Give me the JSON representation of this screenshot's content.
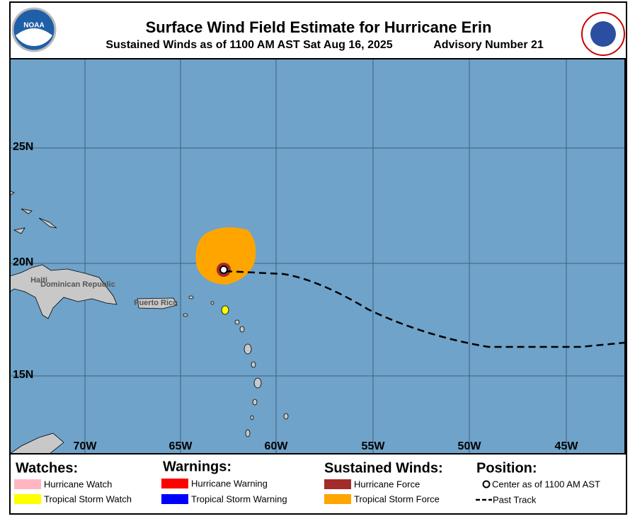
{
  "header": {
    "title": "Surface Wind Field Estimate for Hurricane Erin",
    "subtitle": "Sustained Winds as of 1100 AM AST Sat Aug 16, 2025",
    "advisory": "Advisory Number 21"
  },
  "map": {
    "latitude_labels": [
      "25N",
      "20N",
      "15N"
    ],
    "longitude_labels": [
      "70W",
      "65W",
      "60W",
      "55W",
      "50W",
      "45W"
    ],
    "places": [
      "Haiti",
      "Dominican Republic",
      "Puerto Rico"
    ]
  },
  "legend": {
    "watches": {
      "title": "Watches:",
      "items": [
        "Hurricane Watch",
        "Tropical Storm Watch"
      ]
    },
    "warnings": {
      "title": "Warnings:",
      "items": [
        "Hurricane Warning",
        "Tropical Storm Warning"
      ]
    },
    "winds": {
      "title": "Sustained Winds:",
      "items": [
        "Hurricane Force",
        "Tropical Storm Force"
      ]
    },
    "position": {
      "title": "Position:",
      "items": [
        "Center as of 1100 AM AST",
        "Past Track"
      ]
    }
  }
}
